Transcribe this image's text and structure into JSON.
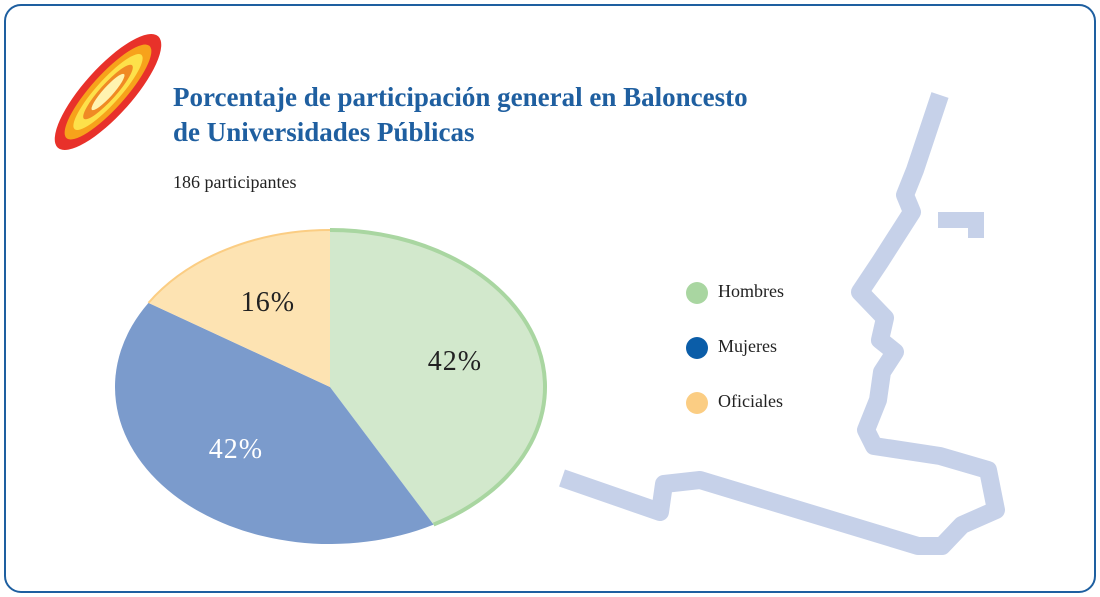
{
  "chart_data": {
    "type": "pie",
    "title": [
      "Porcentaje de participación general en Baloncesto",
      "de Universidades Públicas"
    ],
    "subtitle": "186 participantes",
    "categories": [
      "Hombres",
      "Mujeres",
      "Oficiales"
    ],
    "values": [
      42,
      42,
      16
    ],
    "value_labels": [
      "42%",
      "42%",
      "16%"
    ],
    "colors": [
      "#a9d6a1",
      "#0b5da8",
      "#fbcd83"
    ],
    "slice_colors": [
      "#d2e8cc",
      "#7b9bcc",
      "#fde3b2"
    ],
    "label_colors": [
      "#222222",
      "#ffffff",
      "#222222"
    ],
    "legend": "right"
  }
}
